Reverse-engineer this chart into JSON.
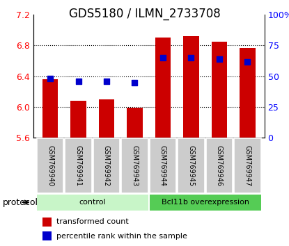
{
  "title": "GDS5180 / ILMN_2733708",
  "samples": [
    "GSM769940",
    "GSM769941",
    "GSM769942",
    "GSM769943",
    "GSM769944",
    "GSM769945",
    "GSM769946",
    "GSM769947"
  ],
  "transformed_count": [
    6.36,
    6.08,
    6.1,
    5.99,
    6.9,
    6.92,
    6.85,
    6.77
  ],
  "percentile_rank": [
    48,
    46,
    46,
    45,
    65,
    65,
    64,
    62
  ],
  "ylim_left": [
    5.6,
    7.2
  ],
  "ylim_right": [
    0,
    100
  ],
  "yticks_left": [
    5.6,
    6.0,
    6.4,
    6.8,
    7.2
  ],
  "yticks_right": [
    0,
    25,
    50,
    75,
    100
  ],
  "groups": [
    {
      "label": "control",
      "start": 0,
      "end": 3,
      "color": "#c8f5c8"
    },
    {
      "label": "Bcl11b overexpression",
      "start": 4,
      "end": 7,
      "color": "#55cc55"
    }
  ],
  "bar_color": "#cc0000",
  "dot_color": "#0000cc",
  "group_label_left": "protocol",
  "background_color": "#ffffff",
  "sample_box_color": "#cccccc",
  "bar_bottom": 5.6,
  "title_fontsize": 12,
  "legend_fontsize": 8,
  "tick_fontsize": 9,
  "sample_fontsize": 7
}
